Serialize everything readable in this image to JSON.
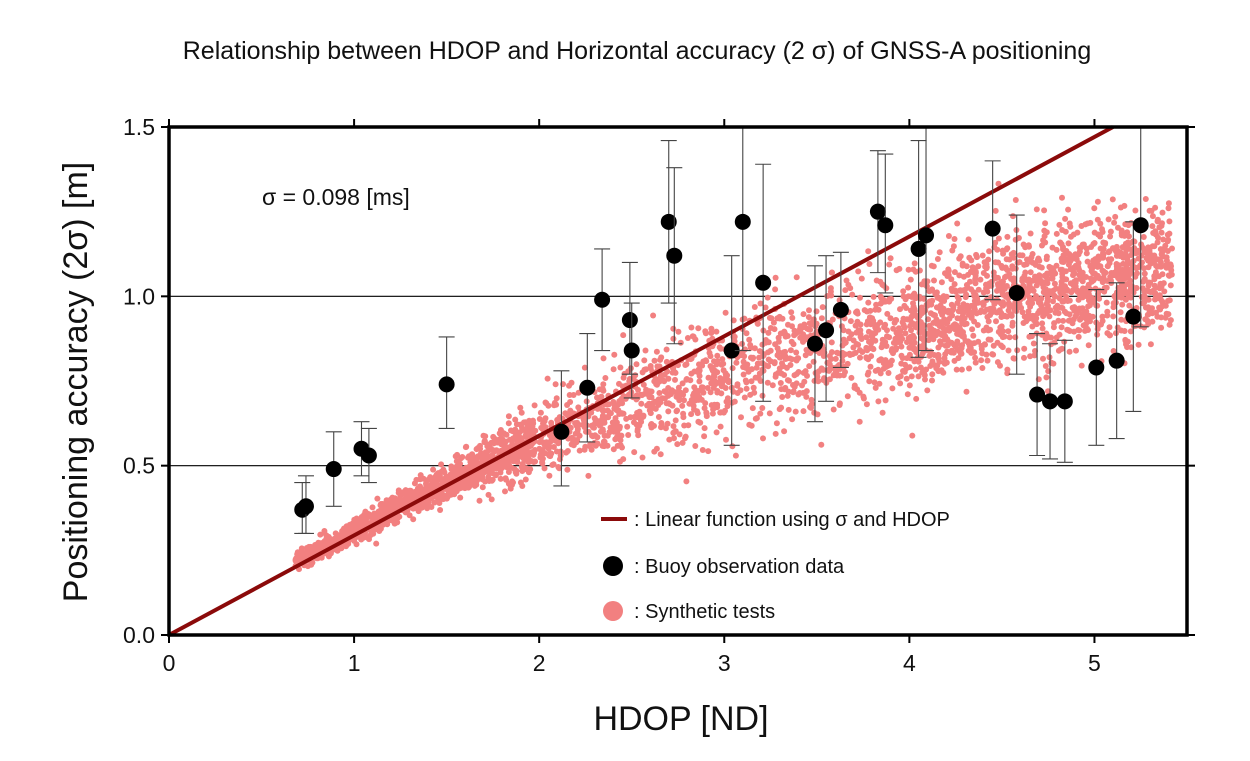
{
  "chart_data": {
    "type": "scatter",
    "title": "Relationship between HDOP and Horizontal accuracy (2 σ) of GNSS-A positioning",
    "xlabel": "HDOP [ND]",
    "ylabel": "Positioning accuracy (2σ) [m]",
    "xlim": [
      0,
      5.5
    ],
    "ylim": [
      0,
      1.5
    ],
    "xticks": [
      "0",
      "1",
      "2",
      "3",
      "4",
      "5"
    ],
    "yticks": [
      "0.0",
      "0.5",
      "1.0",
      "1.5"
    ],
    "grid": "horizontal lines at 0.5 and 1.0",
    "annotation": "σ = 0.098 [ms]",
    "legend_position": "lower-right",
    "colors": {
      "line": "#8b0a0a",
      "buoy": "#000000",
      "synthetic": "#f28080"
    },
    "series": [
      {
        "name": ": Linear function using σ and HDOP",
        "kind": "line",
        "x": [
          0,
          5.1
        ],
        "y": [
          0,
          1.5
        ]
      },
      {
        "name": ": Buoy observation data",
        "kind": "points_with_errorbars",
        "points": [
          {
            "x": 0.72,
            "y": 0.37,
            "lo": 0.3,
            "hi": 0.45
          },
          {
            "x": 0.74,
            "y": 0.38,
            "lo": 0.3,
            "hi": 0.47
          },
          {
            "x": 0.89,
            "y": 0.49,
            "lo": 0.38,
            "hi": 0.6
          },
          {
            "x": 1.04,
            "y": 0.55,
            "lo": 0.47,
            "hi": 0.63
          },
          {
            "x": 1.08,
            "y": 0.53,
            "lo": 0.45,
            "hi": 0.61
          },
          {
            "x": 1.5,
            "y": 0.74,
            "lo": 0.61,
            "hi": 0.88
          },
          {
            "x": 2.12,
            "y": 0.6,
            "lo": 0.44,
            "hi": 0.78
          },
          {
            "x": 2.26,
            "y": 0.73,
            "lo": 0.57,
            "hi": 0.89
          },
          {
            "x": 2.34,
            "y": 0.99,
            "lo": 0.84,
            "hi": 1.14
          },
          {
            "x": 2.49,
            "y": 0.93,
            "lo": 0.77,
            "hi": 1.1
          },
          {
            "x": 2.5,
            "y": 0.84,
            "lo": 0.7,
            "hi": 0.98
          },
          {
            "x": 2.7,
            "y": 1.22,
            "lo": 0.98,
            "hi": 1.46
          },
          {
            "x": 2.73,
            "y": 1.12,
            "lo": 0.86,
            "hi": 1.38
          },
          {
            "x": 3.04,
            "y": 0.84,
            "lo": 0.56,
            "hi": 1.12
          },
          {
            "x": 3.1,
            "y": 1.22,
            "lo": 0.84,
            "hi": 1.6
          },
          {
            "x": 3.21,
            "y": 1.04,
            "lo": 0.69,
            "hi": 1.39
          },
          {
            "x": 3.49,
            "y": 0.86,
            "lo": 0.63,
            "hi": 1.09
          },
          {
            "x": 3.55,
            "y": 0.9,
            "lo": 0.69,
            "hi": 1.12
          },
          {
            "x": 3.63,
            "y": 0.96,
            "lo": 0.79,
            "hi": 1.13
          },
          {
            "x": 3.83,
            "y": 1.25,
            "lo": 1.07,
            "hi": 1.43
          },
          {
            "x": 3.87,
            "y": 1.21,
            "lo": 1.01,
            "hi": 1.42
          },
          {
            "x": 4.05,
            "y": 1.14,
            "lo": 0.82,
            "hi": 1.46
          },
          {
            "x": 4.09,
            "y": 1.18,
            "lo": 0.84,
            "hi": 1.52
          },
          {
            "x": 4.45,
            "y": 1.2,
            "lo": 0.99,
            "hi": 1.4
          },
          {
            "x": 4.58,
            "y": 1.01,
            "lo": 0.77,
            "hi": 1.24
          },
          {
            "x": 4.69,
            "y": 0.71,
            "lo": 0.53,
            "hi": 0.89
          },
          {
            "x": 4.76,
            "y": 0.69,
            "lo": 0.52,
            "hi": 0.86
          },
          {
            "x": 4.84,
            "y": 0.69,
            "lo": 0.51,
            "hi": 0.87
          },
          {
            "x": 5.01,
            "y": 0.79,
            "lo": 0.56,
            "hi": 1.02
          },
          {
            "x": 5.12,
            "y": 0.81,
            "lo": 0.58,
            "hi": 1.04
          },
          {
            "x": 5.21,
            "y": 0.94,
            "lo": 0.66,
            "hi": 1.22
          },
          {
            "x": 5.25,
            "y": 1.21,
            "lo": 0.91,
            "hi": 1.51
          }
        ]
      },
      {
        "name": ": Synthetic tests",
        "kind": "scatter_cloud",
        "count": 3800,
        "x_range": [
          0.68,
          5.42
        ],
        "trend_y": [
          {
            "x": 0.7,
            "y": 0.22
          },
          {
            "x": 1.5,
            "y": 0.45
          },
          {
            "x": 2.0,
            "y": 0.58
          },
          {
            "x": 3.0,
            "y": 0.77
          },
          {
            "x": 4.0,
            "y": 0.9
          },
          {
            "x": 5.0,
            "y": 1.02
          },
          {
            "x": 5.4,
            "y": 1.05
          }
        ],
        "spread": [
          {
            "x": 0.7,
            "s": 0.012
          },
          {
            "x": 1.5,
            "s": 0.025
          },
          {
            "x": 2.0,
            "s": 0.05
          },
          {
            "x": 3.0,
            "s": 0.09
          },
          {
            "x": 4.0,
            "s": 0.09
          },
          {
            "x": 5.0,
            "s": 0.09
          }
        ]
      }
    ]
  }
}
